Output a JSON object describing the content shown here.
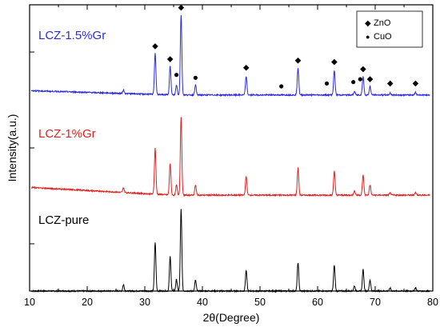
{
  "chart_data": {
    "type": "line",
    "xlabel": "2θ(Degree)",
    "ylabel": "Intensity(a.u.)",
    "xlim": [
      10,
      80
    ],
    "x_ticks": [
      10,
      20,
      30,
      40,
      50,
      60,
      70,
      80
    ],
    "ylim": [
      0,
      100
    ],
    "grid": false,
    "legend_position": "top-right",
    "legend": [
      {
        "symbol": "◆",
        "label": "ZnO"
      },
      {
        "symbol": "●",
        "label": "CuO"
      }
    ],
    "series": [
      {
        "name": "LCZ-pure",
        "color": "#000000",
        "baseline": 0,
        "peaks": [
          [
            26.3,
            2.2
          ],
          [
            31.8,
            17.0
          ],
          [
            34.4,
            12.0
          ],
          [
            35.5,
            4.0
          ],
          [
            36.3,
            28.5
          ],
          [
            38.8,
            3.8
          ],
          [
            47.6,
            7.2
          ],
          [
            56.6,
            10.0
          ],
          [
            62.9,
            9.0
          ],
          [
            66.4,
            1.8
          ],
          [
            67.9,
            7.5
          ],
          [
            69.1,
            3.8
          ],
          [
            72.6,
            1.0
          ],
          [
            77.0,
            1.2
          ]
        ]
      },
      {
        "name": "LCZ-1%Gr",
        "color": "#dd2222",
        "baseline": 33.5,
        "peaks": [
          [
            26.3,
            1.6
          ],
          [
            31.8,
            16.0
          ],
          [
            34.4,
            11.0
          ],
          [
            35.5,
            3.5
          ],
          [
            36.3,
            27.5
          ],
          [
            38.8,
            3.5
          ],
          [
            47.6,
            6.5
          ],
          [
            56.6,
            9.5
          ],
          [
            62.9,
            8.5
          ],
          [
            66.4,
            1.5
          ],
          [
            67.9,
            7.0
          ],
          [
            69.1,
            3.5
          ],
          [
            72.6,
            0.8
          ],
          [
            77.0,
            1.0
          ]
        ]
      },
      {
        "name": "LCZ-1.5%Gr",
        "color": "#2b2bdd",
        "baseline": 68.5,
        "peaks": [
          [
            26.3,
            1.2
          ],
          [
            31.8,
            14.5
          ],
          [
            34.4,
            10.0
          ],
          [
            35.5,
            3.5
          ],
          [
            36.3,
            28.0
          ],
          [
            38.8,
            3.5
          ],
          [
            47.6,
            6.5
          ],
          [
            56.6,
            9.5
          ],
          [
            62.9,
            8.5
          ],
          [
            66.4,
            1.2
          ],
          [
            67.9,
            6.5
          ],
          [
            69.1,
            3.0
          ],
          [
            72.6,
            0.7
          ],
          [
            77.0,
            0.9
          ]
        ]
      }
    ],
    "markers": [
      {
        "x": 31.8,
        "y": 85.5,
        "type": "ZnO"
      },
      {
        "x": 34.4,
        "y": 81.0,
        "type": "ZnO"
      },
      {
        "x": 35.5,
        "y": 75.5,
        "type": "CuO"
      },
      {
        "x": 36.3,
        "y": 99.0,
        "type": "ZnO"
      },
      {
        "x": 38.8,
        "y": 74.5,
        "type": "CuO"
      },
      {
        "x": 47.6,
        "y": 78.0,
        "type": "ZnO"
      },
      {
        "x": 53.7,
        "y": 71.5,
        "type": "CuO"
      },
      {
        "x": 56.6,
        "y": 80.5,
        "type": "ZnO"
      },
      {
        "x": 61.6,
        "y": 72.5,
        "type": "CuO"
      },
      {
        "x": 62.9,
        "y": 80.0,
        "type": "ZnO"
      },
      {
        "x": 66.2,
        "y": 73.0,
        "type": "CuO"
      },
      {
        "x": 67.9,
        "y": 77.5,
        "type": "ZnO"
      },
      {
        "x": 67.4,
        "y": 74.0,
        "type": "CuO"
      },
      {
        "x": 69.1,
        "y": 74.0,
        "type": "ZnO"
      },
      {
        "x": 72.6,
        "y": 72.5,
        "type": "ZnO"
      },
      {
        "x": 77.0,
        "y": 72.5,
        "type": "ZnO"
      }
    ]
  }
}
